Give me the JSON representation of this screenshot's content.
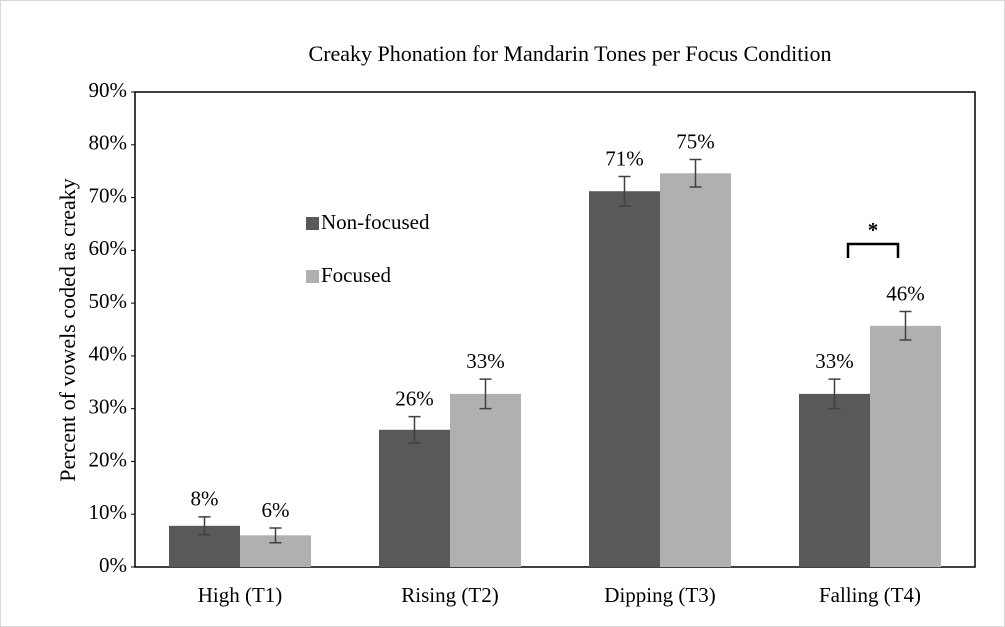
{
  "chart_data": {
    "type": "bar",
    "title": "Creaky Phonation for Mandarin Tones per Focus Condition",
    "ylabel": "Percent of vowels coded as creaky",
    "categories": [
      "High (T1)",
      "Rising (T2)",
      "Dipping (T3)",
      "Falling (T4)"
    ],
    "series": [
      {
        "name": "Non-focused",
        "color": "#595959",
        "values": [
          7.8,
          26,
          71.2,
          32.8
        ],
        "value_labels": [
          "8%",
          "26%",
          "71%",
          "33%"
        ],
        "errors": [
          1.7,
          2.5,
          2.8,
          2.8
        ]
      },
      {
        "name": "Focused",
        "color": "#b0b0b0",
        "values": [
          6,
          32.8,
          74.6,
          45.7
        ],
        "value_labels": [
          "6%",
          "33%",
          "75%",
          "46%"
        ],
        "errors": [
          1.4,
          2.8,
          2.6,
          2.7
        ]
      }
    ],
    "annotation": "*",
    "ylim": [
      0,
      90
    ],
    "yticks": [
      {
        "value": 0,
        "label": "0%"
      },
      {
        "value": 10,
        "label": "10%"
      },
      {
        "value": 20,
        "label": "20%"
      },
      {
        "value": 30,
        "label": "30%"
      },
      {
        "value": 40,
        "label": "40%"
      },
      {
        "value": 50,
        "label": "50%"
      },
      {
        "value": 60,
        "label": "60%"
      },
      {
        "value": 70,
        "label": "70%"
      },
      {
        "value": 80,
        "label": "80%"
      },
      {
        "value": 90,
        "label": "90%"
      }
    ],
    "grid": false,
    "legend": "upper left"
  }
}
